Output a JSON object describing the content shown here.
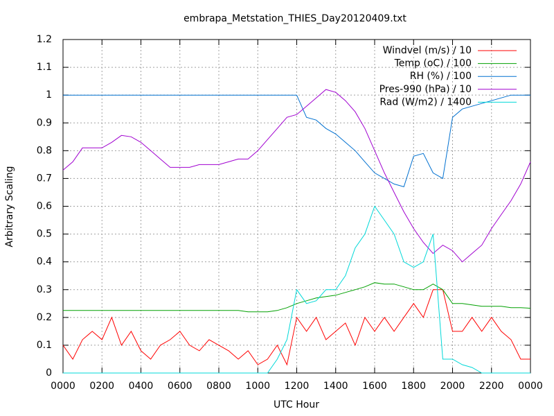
{
  "chart_data": {
    "type": "line",
    "title": "embrapa_Metstation_THIES_Day20120409.txt",
    "x_label": "UTC Hour",
    "y_label": "Arbitrary Scaling",
    "xlim": [
      0,
      24
    ],
    "ylim": [
      0,
      1.2
    ],
    "xticks": [
      {
        "value": 0,
        "label": "0000"
      },
      {
        "value": 2,
        "label": "0200"
      },
      {
        "value": 4,
        "label": "0400"
      },
      {
        "value": 6,
        "label": "0600"
      },
      {
        "value": 8,
        "label": "0800"
      },
      {
        "value": 10,
        "label": "1000"
      },
      {
        "value": 12,
        "label": "1200"
      },
      {
        "value": 14,
        "label": "1400"
      },
      {
        "value": 16,
        "label": "1600"
      },
      {
        "value": 18,
        "label": "1800"
      },
      {
        "value": 20,
        "label": "2000"
      },
      {
        "value": 22,
        "label": "2200"
      },
      {
        "value": 24,
        "label": "0000"
      }
    ],
    "yticks": [
      0,
      0.1,
      0.2,
      0.3,
      0.4,
      0.5,
      0.6,
      0.7,
      0.8,
      0.9,
      1,
      1.1,
      1.2
    ],
    "grid": true,
    "legend": "top-right",
    "x": [
      0,
      0.5,
      1,
      1.5,
      2,
      2.5,
      3,
      3.5,
      4,
      4.5,
      5,
      5.5,
      6,
      6.5,
      7,
      7.5,
      8,
      8.5,
      9,
      9.5,
      10,
      10.5,
      11,
      11.5,
      12,
      12.5,
      13,
      13.5,
      14,
      14.5,
      15,
      15.5,
      16,
      16.5,
      17,
      17.5,
      18,
      18.5,
      19,
      19.5,
      20,
      20.5,
      21,
      21.5,
      22,
      22.5,
      23,
      23.5,
      24
    ],
    "series": [
      {
        "name": "Windvel (m/s) / 10",
        "color": "#ff0000",
        "values": [
          0.1,
          0.05,
          0.12,
          0.15,
          0.12,
          0.2,
          0.1,
          0.15,
          0.08,
          0.05,
          0.1,
          0.12,
          0.15,
          0.1,
          0.08,
          0.12,
          0.1,
          0.08,
          0.05,
          0.08,
          0.03,
          0.05,
          0.1,
          0.03,
          0.2,
          0.15,
          0.2,
          0.12,
          0.15,
          0.18,
          0.1,
          0.2,
          0.15,
          0.2,
          0.15,
          0.2,
          0.25,
          0.2,
          0.3,
          0.3,
          0.15,
          0.15,
          0.2,
          0.15,
          0.2,
          0.15,
          0.12,
          0.05,
          0.05
        ]
      },
      {
        "name": "Temp (oC) / 100",
        "color": "#00a000",
        "values": [
          0.225,
          0.225,
          0.225,
          0.225,
          0.225,
          0.225,
          0.225,
          0.225,
          0.225,
          0.225,
          0.225,
          0.225,
          0.225,
          0.225,
          0.225,
          0.225,
          0.225,
          0.225,
          0.225,
          0.22,
          0.22,
          0.22,
          0.225,
          0.235,
          0.25,
          0.26,
          0.27,
          0.275,
          0.28,
          0.29,
          0.3,
          0.31,
          0.325,
          0.32,
          0.32,
          0.31,
          0.3,
          0.3,
          0.32,
          0.3,
          0.25,
          0.25,
          0.245,
          0.24,
          0.24,
          0.24,
          0.235,
          0.235,
          0.233
        ]
      },
      {
        "name": "RH (%) / 100",
        "color": "#0070d0",
        "values": [
          1,
          1,
          1,
          1,
          1,
          1,
          1,
          1,
          1,
          1,
          1,
          1,
          1,
          1,
          1,
          1,
          1,
          1,
          1,
          1,
          1,
          1,
          1,
          1,
          1,
          0.92,
          0.91,
          0.88,
          0.86,
          0.83,
          0.8,
          0.76,
          0.72,
          0.7,
          0.68,
          0.67,
          0.78,
          0.79,
          0.72,
          0.7,
          0.92,
          0.95,
          0.96,
          0.97,
          0.98,
          0.99,
          1,
          1,
          1
        ]
      },
      {
        "name": "Pres-990 (hPa) / 10",
        "color": "#a000d0",
        "values": [
          0.73,
          0.76,
          0.81,
          0.81,
          0.81,
          0.83,
          0.855,
          0.85,
          0.83,
          0.8,
          0.77,
          0.74,
          0.74,
          0.74,
          0.75,
          0.75,
          0.75,
          0.76,
          0.77,
          0.77,
          0.8,
          0.84,
          0.88,
          0.92,
          0.93,
          0.96,
          0.99,
          1.02,
          1.01,
          0.98,
          0.94,
          0.88,
          0.8,
          0.72,
          0.65,
          0.58,
          0.52,
          0.47,
          0.43,
          0.46,
          0.44,
          0.4,
          0.43,
          0.46,
          0.52,
          0.57,
          0.62,
          0.68,
          0.76
        ]
      },
      {
        "name": "Rad (W/m2) / 1400",
        "color": "#00d8d8",
        "values": [
          0,
          0,
          0,
          0,
          0,
          0,
          0,
          0,
          0,
          0,
          0,
          0,
          0,
          0,
          0,
          0,
          0,
          0,
          0,
          0,
          0,
          0,
          0.05,
          0.12,
          0.3,
          0.25,
          0.26,
          0.3,
          0.3,
          0.35,
          0.45,
          0.5,
          0.6,
          0.55,
          0.5,
          0.4,
          0.38,
          0.4,
          0.5,
          0.05,
          0.05,
          0.03,
          0.02,
          0,
          0,
          0,
          0,
          0,
          0
        ]
      }
    ]
  }
}
